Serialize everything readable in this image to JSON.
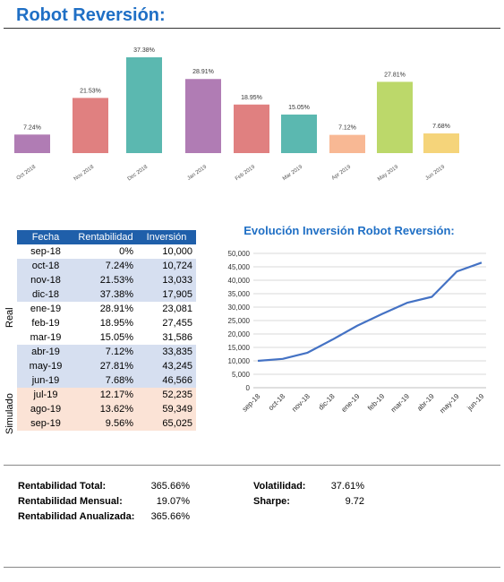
{
  "title": "Robot Reversión:",
  "bar_chart": {
    "categories": [
      "Oct 2018",
      "Nov 2018",
      "Dec 2018",
      "Jan 2019",
      "Feb 2019",
      "Mar 2019",
      "Apr 2019",
      "May 2019",
      "Jun 2019"
    ],
    "labels": [
      "7.24%",
      "21.53%",
      "37.38%",
      "28.91%",
      "18.95%",
      "15.05%",
      "7.12%",
      "27.81%",
      "7.68%"
    ],
    "values": [
      7.24,
      21.53,
      37.38,
      28.91,
      18.95,
      15.05,
      7.12,
      27.81,
      7.68
    ],
    "colors": [
      "#b07cb4",
      "#e08080",
      "#5bb8b0",
      "#b07cb4",
      "#e08080",
      "#5bb8b0",
      "#f8b894",
      "#bcd86a",
      "#f5d47a"
    ]
  },
  "table": {
    "headers": [
      "Fecha",
      "Rentabilidad",
      "Inversión"
    ],
    "rows": [
      {
        "fecha": "sep-18",
        "rent": "0%",
        "inv": "10,000",
        "style": "w"
      },
      {
        "fecha": "oct-18",
        "rent": "7.24%",
        "inv": "10,724",
        "style": "b"
      },
      {
        "fecha": "nov-18",
        "rent": "21.53%",
        "inv": "13,033",
        "style": "b"
      },
      {
        "fecha": "dic-18",
        "rent": "37.38%",
        "inv": "17,905",
        "style": "b"
      },
      {
        "fecha": "ene-19",
        "rent": "28.91%",
        "inv": "23,081",
        "style": "w"
      },
      {
        "fecha": "feb-19",
        "rent": "18.95%",
        "inv": "27,455",
        "style": "w"
      },
      {
        "fecha": "mar-19",
        "rent": "15.05%",
        "inv": "31,586",
        "style": "w"
      },
      {
        "fecha": "abr-19",
        "rent": "7.12%",
        "inv": "33,835",
        "style": "b"
      },
      {
        "fecha": "may-19",
        "rent": "27.81%",
        "inv": "43,245",
        "style": "b"
      },
      {
        "fecha": "jun-19",
        "rent": "7.68%",
        "inv": "46,566",
        "style": "b"
      },
      {
        "fecha": "jul-19",
        "rent": "12.17%",
        "inv": "52,235",
        "style": "o"
      },
      {
        "fecha": "ago-19",
        "rent": "13.62%",
        "inv": "59,349",
        "style": "o"
      },
      {
        "fecha": "sep-19",
        "rent": "9.56%",
        "inv": "65,025",
        "style": "o"
      }
    ],
    "side_real": "Real",
    "side_simulado": "Simulado"
  },
  "chart_data": {
    "type": "line",
    "title": "Evolución Inversión Robot Reversión:",
    "categories": [
      "sep-18",
      "oct-18",
      "nov-18",
      "dic-18",
      "ene-19",
      "feb-19",
      "mar-19",
      "abr-19",
      "may-19",
      "jun-19"
    ],
    "values": [
      10000,
      10724,
      13033,
      17905,
      23081,
      27455,
      31586,
      33835,
      43245,
      46566
    ],
    "y_ticks": [
      "0",
      "5,000",
      "10,000",
      "15,000",
      "20,000",
      "25,000",
      "30,000",
      "35,000",
      "40,000",
      "45,000",
      "50,000"
    ],
    "ylim": [
      0,
      50000
    ],
    "color": "#4472c4",
    "grid": true
  },
  "stats": {
    "left_labels": [
      "Rentabilidad Total:",
      "Rentabilidad Mensual:",
      "Rentabilidad Anualizada:"
    ],
    "left_values": [
      "365.66%",
      "19.07%",
      "365.66%"
    ],
    "right_labels": [
      "Volatilidad:",
      "Sharpe:"
    ],
    "right_values": [
      "37.61%",
      "9.72"
    ]
  }
}
